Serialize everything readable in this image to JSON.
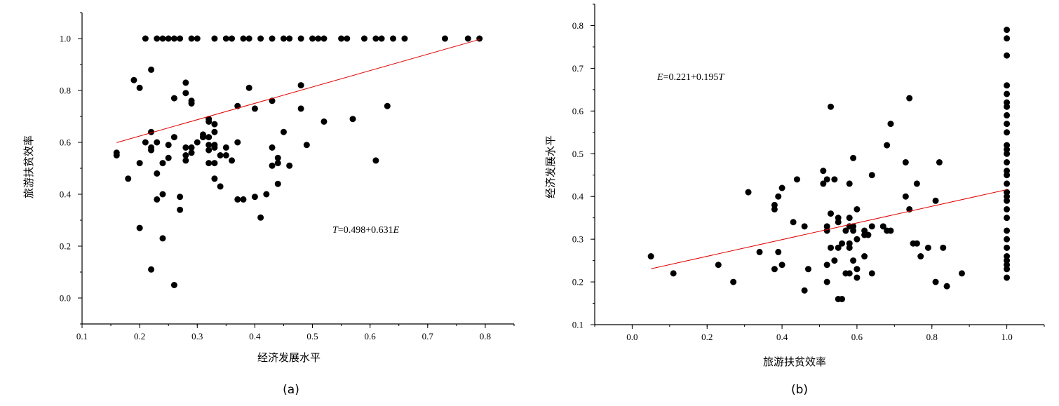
{
  "chart_data": [
    {
      "type": "scatter",
      "panel_label": "(a)",
      "xlabel": "经济发展水平",
      "ylabel": "旅游扶贫效率",
      "xlim": [
        0.1,
        0.85
      ],
      "ylim": [
        -0.1,
        1.1
      ],
      "xticks": [
        "0.1",
        "0.2",
        "0.3",
        "0.4",
        "0.5",
        "0.6",
        "0.7",
        "0.8"
      ],
      "yticks": [
        "0.0",
        "0.2",
        "0.4",
        "0.6",
        "0.8",
        "1.0"
      ],
      "equation": {
        "lhs": "T",
        "rest": "=0.498+0.631",
        "var": "E"
      },
      "fit_line": {
        "x0": 0.16,
        "x1": 0.79,
        "intercept": 0.498,
        "slope": 0.631,
        "color": "#e00000"
      },
      "grid": false,
      "points": [
        [
          0.21,
          1.0
        ],
        [
          0.23,
          1.0
        ],
        [
          0.24,
          1.0
        ],
        [
          0.25,
          1.0
        ],
        [
          0.26,
          1.0
        ],
        [
          0.27,
          1.0
        ],
        [
          0.29,
          1.0
        ],
        [
          0.3,
          1.0
        ],
        [
          0.33,
          1.0
        ],
        [
          0.35,
          1.0
        ],
        [
          0.36,
          1.0
        ],
        [
          0.38,
          1.0
        ],
        [
          0.39,
          1.0
        ],
        [
          0.41,
          1.0
        ],
        [
          0.43,
          1.0
        ],
        [
          0.45,
          1.0
        ],
        [
          0.46,
          1.0
        ],
        [
          0.48,
          1.0
        ],
        [
          0.5,
          1.0
        ],
        [
          0.51,
          1.0
        ],
        [
          0.52,
          1.0
        ],
        [
          0.55,
          1.0
        ],
        [
          0.56,
          1.0
        ],
        [
          0.59,
          1.0
        ],
        [
          0.61,
          1.0
        ],
        [
          0.62,
          1.0
        ],
        [
          0.64,
          1.0
        ],
        [
          0.66,
          1.0
        ],
        [
          0.73,
          1.0
        ],
        [
          0.77,
          1.0
        ],
        [
          0.79,
          1.0
        ],
        [
          0.16,
          0.56
        ],
        [
          0.16,
          0.55
        ],
        [
          0.18,
          0.46
        ],
        [
          0.19,
          0.84
        ],
        [
          0.2,
          0.81
        ],
        [
          0.2,
          0.52
        ],
        [
          0.2,
          0.27
        ],
        [
          0.21,
          0.6
        ],
        [
          0.22,
          0.88
        ],
        [
          0.22,
          0.64
        ],
        [
          0.22,
          0.58
        ],
        [
          0.22,
          0.57
        ],
        [
          0.22,
          0.11
        ],
        [
          0.23,
          0.6
        ],
        [
          0.23,
          0.48
        ],
        [
          0.23,
          0.38
        ],
        [
          0.24,
          0.52
        ],
        [
          0.24,
          0.4
        ],
        [
          0.24,
          0.23
        ],
        [
          0.25,
          0.59
        ],
        [
          0.25,
          0.54
        ],
        [
          0.26,
          0.77
        ],
        [
          0.26,
          0.62
        ],
        [
          0.26,
          0.05
        ],
        [
          0.27,
          0.39
        ],
        [
          0.27,
          0.34
        ],
        [
          0.28,
          0.83
        ],
        [
          0.28,
          0.79
        ],
        [
          0.28,
          0.58
        ],
        [
          0.28,
          0.55
        ],
        [
          0.28,
          0.53
        ],
        [
          0.29,
          0.76
        ],
        [
          0.29,
          0.75
        ],
        [
          0.29,
          0.58
        ],
        [
          0.29,
          0.56
        ],
        [
          0.3,
          0.6
        ],
        [
          0.31,
          0.63
        ],
        [
          0.31,
          0.62
        ],
        [
          0.32,
          0.69
        ],
        [
          0.32,
          0.68
        ],
        [
          0.32,
          0.62
        ],
        [
          0.32,
          0.59
        ],
        [
          0.32,
          0.57
        ],
        [
          0.32,
          0.52
        ],
        [
          0.33,
          0.67
        ],
        [
          0.33,
          0.64
        ],
        [
          0.33,
          0.59
        ],
        [
          0.33,
          0.58
        ],
        [
          0.33,
          0.52
        ],
        [
          0.33,
          0.46
        ],
        [
          0.34,
          0.55
        ],
        [
          0.34,
          0.43
        ],
        [
          0.35,
          0.58
        ],
        [
          0.35,
          0.55
        ],
        [
          0.36,
          0.53
        ],
        [
          0.37,
          0.74
        ],
        [
          0.37,
          0.6
        ],
        [
          0.37,
          0.38
        ],
        [
          0.38,
          0.38
        ],
        [
          0.39,
          0.81
        ],
        [
          0.4,
          0.73
        ],
        [
          0.4,
          0.39
        ],
        [
          0.41,
          0.31
        ],
        [
          0.42,
          0.4
        ],
        [
          0.43,
          0.76
        ],
        [
          0.43,
          0.58
        ],
        [
          0.43,
          0.51
        ],
        [
          0.44,
          0.54
        ],
        [
          0.44,
          0.52
        ],
        [
          0.44,
          0.44
        ],
        [
          0.45,
          0.64
        ],
        [
          0.46,
          0.51
        ],
        [
          0.48,
          0.82
        ],
        [
          0.48,
          0.73
        ],
        [
          0.49,
          0.59
        ],
        [
          0.52,
          0.68
        ],
        [
          0.57,
          0.69
        ],
        [
          0.61,
          0.53
        ],
        [
          0.63,
          0.74
        ]
      ]
    },
    {
      "type": "scatter",
      "panel_label": "(b)",
      "xlabel": "旅游扶贫效率",
      "ylabel": "经济发展水平",
      "xlim": [
        -0.1,
        1.1
      ],
      "ylim": [
        0.1,
        0.85
      ],
      "xticks": [
        "0.0",
        "0.2",
        "0.4",
        "0.6",
        "0.8",
        "1.0"
      ],
      "yticks": [
        "0.1",
        "0.2",
        "0.3",
        "0.4",
        "0.5",
        "0.6",
        "0.7",
        "0.8"
      ],
      "equation": {
        "lhs": "E",
        "rest": "=0.221+0.195",
        "var": "T"
      },
      "fit_line": {
        "x0": 0.05,
        "x1": 1.0,
        "intercept": 0.221,
        "slope": 0.195,
        "color": "#e00000"
      },
      "grid": false,
      "points": [
        [
          1.0,
          0.79
        ],
        [
          1.0,
          0.77
        ],
        [
          1.0,
          0.73
        ],
        [
          1.0,
          0.66
        ],
        [
          1.0,
          0.64
        ],
        [
          1.0,
          0.62
        ],
        [
          1.0,
          0.61
        ],
        [
          1.0,
          0.59
        ],
        [
          1.0,
          0.57
        ],
        [
          1.0,
          0.55
        ],
        [
          1.0,
          0.52
        ],
        [
          1.0,
          0.51
        ],
        [
          1.0,
          0.5
        ],
        [
          1.0,
          0.48
        ],
        [
          1.0,
          0.46
        ],
        [
          1.0,
          0.45
        ],
        [
          1.0,
          0.43
        ],
        [
          1.0,
          0.41
        ],
        [
          1.0,
          0.4
        ],
        [
          1.0,
          0.39
        ],
        [
          1.0,
          0.37
        ],
        [
          1.0,
          0.35
        ],
        [
          1.0,
          0.32
        ],
        [
          1.0,
          0.3
        ],
        [
          1.0,
          0.28
        ],
        [
          1.0,
          0.26
        ],
        [
          1.0,
          0.25
        ],
        [
          1.0,
          0.24
        ],
        [
          1.0,
          0.23
        ],
        [
          1.0,
          0.21
        ],
        [
          0.05,
          0.26
        ],
        [
          0.11,
          0.22
        ],
        [
          0.23,
          0.24
        ],
        [
          0.27,
          0.2
        ],
        [
          0.31,
          0.41
        ],
        [
          0.34,
          0.27
        ],
        [
          0.38,
          0.38
        ],
        [
          0.38,
          0.37
        ],
        [
          0.38,
          0.23
        ],
        [
          0.39,
          0.4
        ],
        [
          0.39,
          0.27
        ],
        [
          0.4,
          0.42
        ],
        [
          0.4,
          0.24
        ],
        [
          0.43,
          0.34
        ],
        [
          0.44,
          0.44
        ],
        [
          0.46,
          0.33
        ],
        [
          0.46,
          0.18
        ],
        [
          0.47,
          0.23
        ],
        [
          0.51,
          0.46
        ],
        [
          0.51,
          0.43
        ],
        [
          0.52,
          0.44
        ],
        [
          0.52,
          0.33
        ],
        [
          0.52,
          0.32
        ],
        [
          0.52,
          0.24
        ],
        [
          0.52,
          0.2
        ],
        [
          0.53,
          0.61
        ],
        [
          0.53,
          0.36
        ],
        [
          0.53,
          0.28
        ],
        [
          0.54,
          0.44
        ],
        [
          0.54,
          0.25
        ],
        [
          0.55,
          0.35
        ],
        [
          0.55,
          0.34
        ],
        [
          0.55,
          0.28
        ],
        [
          0.55,
          0.16
        ],
        [
          0.56,
          0.29
        ],
        [
          0.56,
          0.16
        ],
        [
          0.57,
          0.22
        ],
        [
          0.57,
          0.32
        ],
        [
          0.58,
          0.43
        ],
        [
          0.58,
          0.35
        ],
        [
          0.58,
          0.33
        ],
        [
          0.58,
          0.29
        ],
        [
          0.58,
          0.28
        ],
        [
          0.58,
          0.22
        ],
        [
          0.59,
          0.49
        ],
        [
          0.59,
          0.33
        ],
        [
          0.59,
          0.32
        ],
        [
          0.59,
          0.25
        ],
        [
          0.6,
          0.37
        ],
        [
          0.6,
          0.3
        ],
        [
          0.6,
          0.23
        ],
        [
          0.6,
          0.21
        ],
        [
          0.62,
          0.32
        ],
        [
          0.62,
          0.31
        ],
        [
          0.62,
          0.26
        ],
        [
          0.63,
          0.31
        ],
        [
          0.64,
          0.45
        ],
        [
          0.64,
          0.33
        ],
        [
          0.64,
          0.22
        ],
        [
          0.67,
          0.33
        ],
        [
          0.68,
          0.52
        ],
        [
          0.68,
          0.32
        ],
        [
          0.69,
          0.57
        ],
        [
          0.69,
          0.32
        ],
        [
          0.73,
          0.48
        ],
        [
          0.73,
          0.4
        ],
        [
          0.74,
          0.63
        ],
        [
          0.74,
          0.37
        ],
        [
          0.75,
          0.29
        ],
        [
          0.76,
          0.43
        ],
        [
          0.76,
          0.29
        ],
        [
          0.77,
          0.26
        ],
        [
          0.79,
          0.28
        ],
        [
          0.81,
          0.39
        ],
        [
          0.81,
          0.2
        ],
        [
          0.82,
          0.48
        ],
        [
          0.83,
          0.28
        ],
        [
          0.84,
          0.19
        ],
        [
          0.88,
          0.22
        ]
      ]
    }
  ]
}
